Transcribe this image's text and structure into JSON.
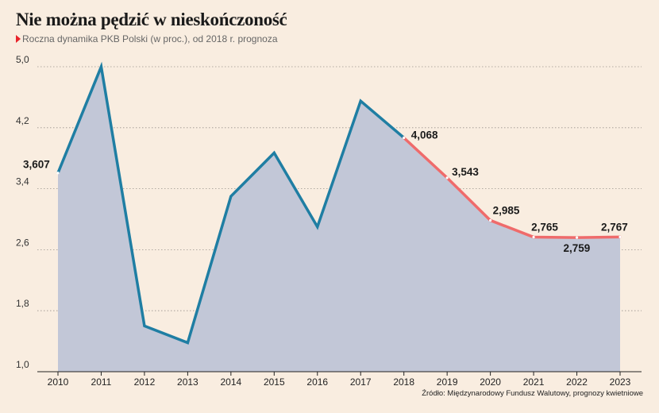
{
  "title": "Nie można pędzić w nieskończoność",
  "subtitle": "Roczna dynamika PKB Polski (w proc.), od 2018 r. prognoza",
  "source": "Źródło: Międzynarodowy Fundusz Walutowy, prognozy kwietniowe",
  "colors": {
    "actual_line": "#1f7ea3",
    "forecast_line": "#ef6b6b",
    "area_fill": "#c2c7d7",
    "background": "#f9ede0",
    "title_marker": "#e8232a"
  },
  "chart_data": {
    "type": "line",
    "title": "Nie można pędzić w nieskończoność",
    "subtitle": "Roczna dynamika PKB Polski (w proc.), od 2018 r. prognoza",
    "x": [
      2010,
      2011,
      2012,
      2013,
      2014,
      2015,
      2016,
      2017,
      2018,
      2019,
      2020,
      2021,
      2022,
      2023
    ],
    "values": [
      3.607,
      5.0,
      1.6,
      1.38,
      3.3,
      3.87,
      2.9,
      4.55,
      4.068,
      3.543,
      2.985,
      2.765,
      2.759,
      2.767
    ],
    "forecast_from": 2018,
    "ylim": [
      1.0,
      5.0
    ],
    "yticks": [
      "1,0",
      "1,8",
      "2,6",
      "3,4",
      "4,2",
      "5,0"
    ],
    "ytick_values": [
      1.0,
      1.8,
      2.6,
      3.4,
      4.2,
      5.0
    ],
    "xticks": [
      "2010",
      "2011",
      "2012",
      "2013",
      "2014",
      "2015",
      "2016",
      "2017",
      "2018",
      "2019",
      "2020",
      "2021",
      "2022",
      "2023"
    ],
    "labels": [
      {
        "x": 2010,
        "text": "3,607"
      },
      {
        "x": 2018,
        "text": "4,068"
      },
      {
        "x": 2019,
        "text": "3,543"
      },
      {
        "x": 2020,
        "text": "2,985"
      },
      {
        "x": 2021,
        "text": "2,765"
      },
      {
        "x": 2022,
        "text": "2,759"
      },
      {
        "x": 2023,
        "text": "2,767"
      }
    ],
    "grid": true,
    "area_fill": true
  }
}
